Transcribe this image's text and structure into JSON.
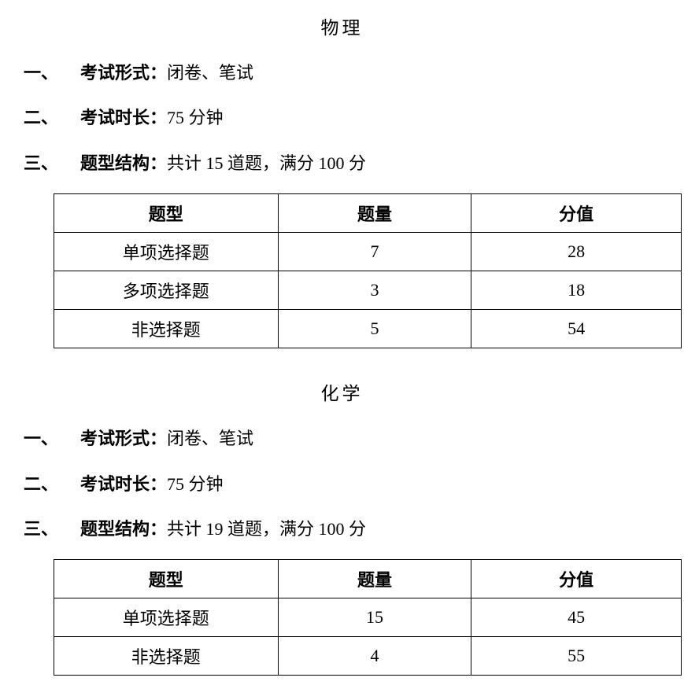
{
  "subjects": [
    {
      "title": "物理",
      "sections": [
        {
          "num": "一、",
          "label": "考试形式：",
          "value": "闭卷、笔试"
        },
        {
          "num": "二、",
          "label": "考试时长：",
          "value": "75 分钟"
        },
        {
          "num": "三、",
          "label": "题型结构：",
          "value": "共计 15 道题，满分 100 分"
        }
      ],
      "table": {
        "headers": {
          "type": "题型",
          "count": "题量",
          "score": "分值"
        },
        "rows": [
          {
            "type": "单项选择题",
            "count": "7",
            "score": "28"
          },
          {
            "type": "多项选择题",
            "count": "3",
            "score": "18"
          },
          {
            "type": "非选择题",
            "count": "5",
            "score": "54"
          }
        ]
      }
    },
    {
      "title": "化学",
      "sections": [
        {
          "num": "一、",
          "label": "考试形式：",
          "value": "闭卷、笔试"
        },
        {
          "num": "二、",
          "label": "考试时长：",
          "value": "75 分钟"
        },
        {
          "num": "三、",
          "label": "题型结构：",
          "value": "共计 19 道题，满分 100 分"
        }
      ],
      "table": {
        "headers": {
          "type": "题型",
          "count": "题量",
          "score": "分值"
        },
        "rows": [
          {
            "type": "单项选择题",
            "count": "15",
            "score": "45"
          },
          {
            "type": "非选择题",
            "count": "4",
            "score": "55"
          }
        ]
      }
    }
  ]
}
